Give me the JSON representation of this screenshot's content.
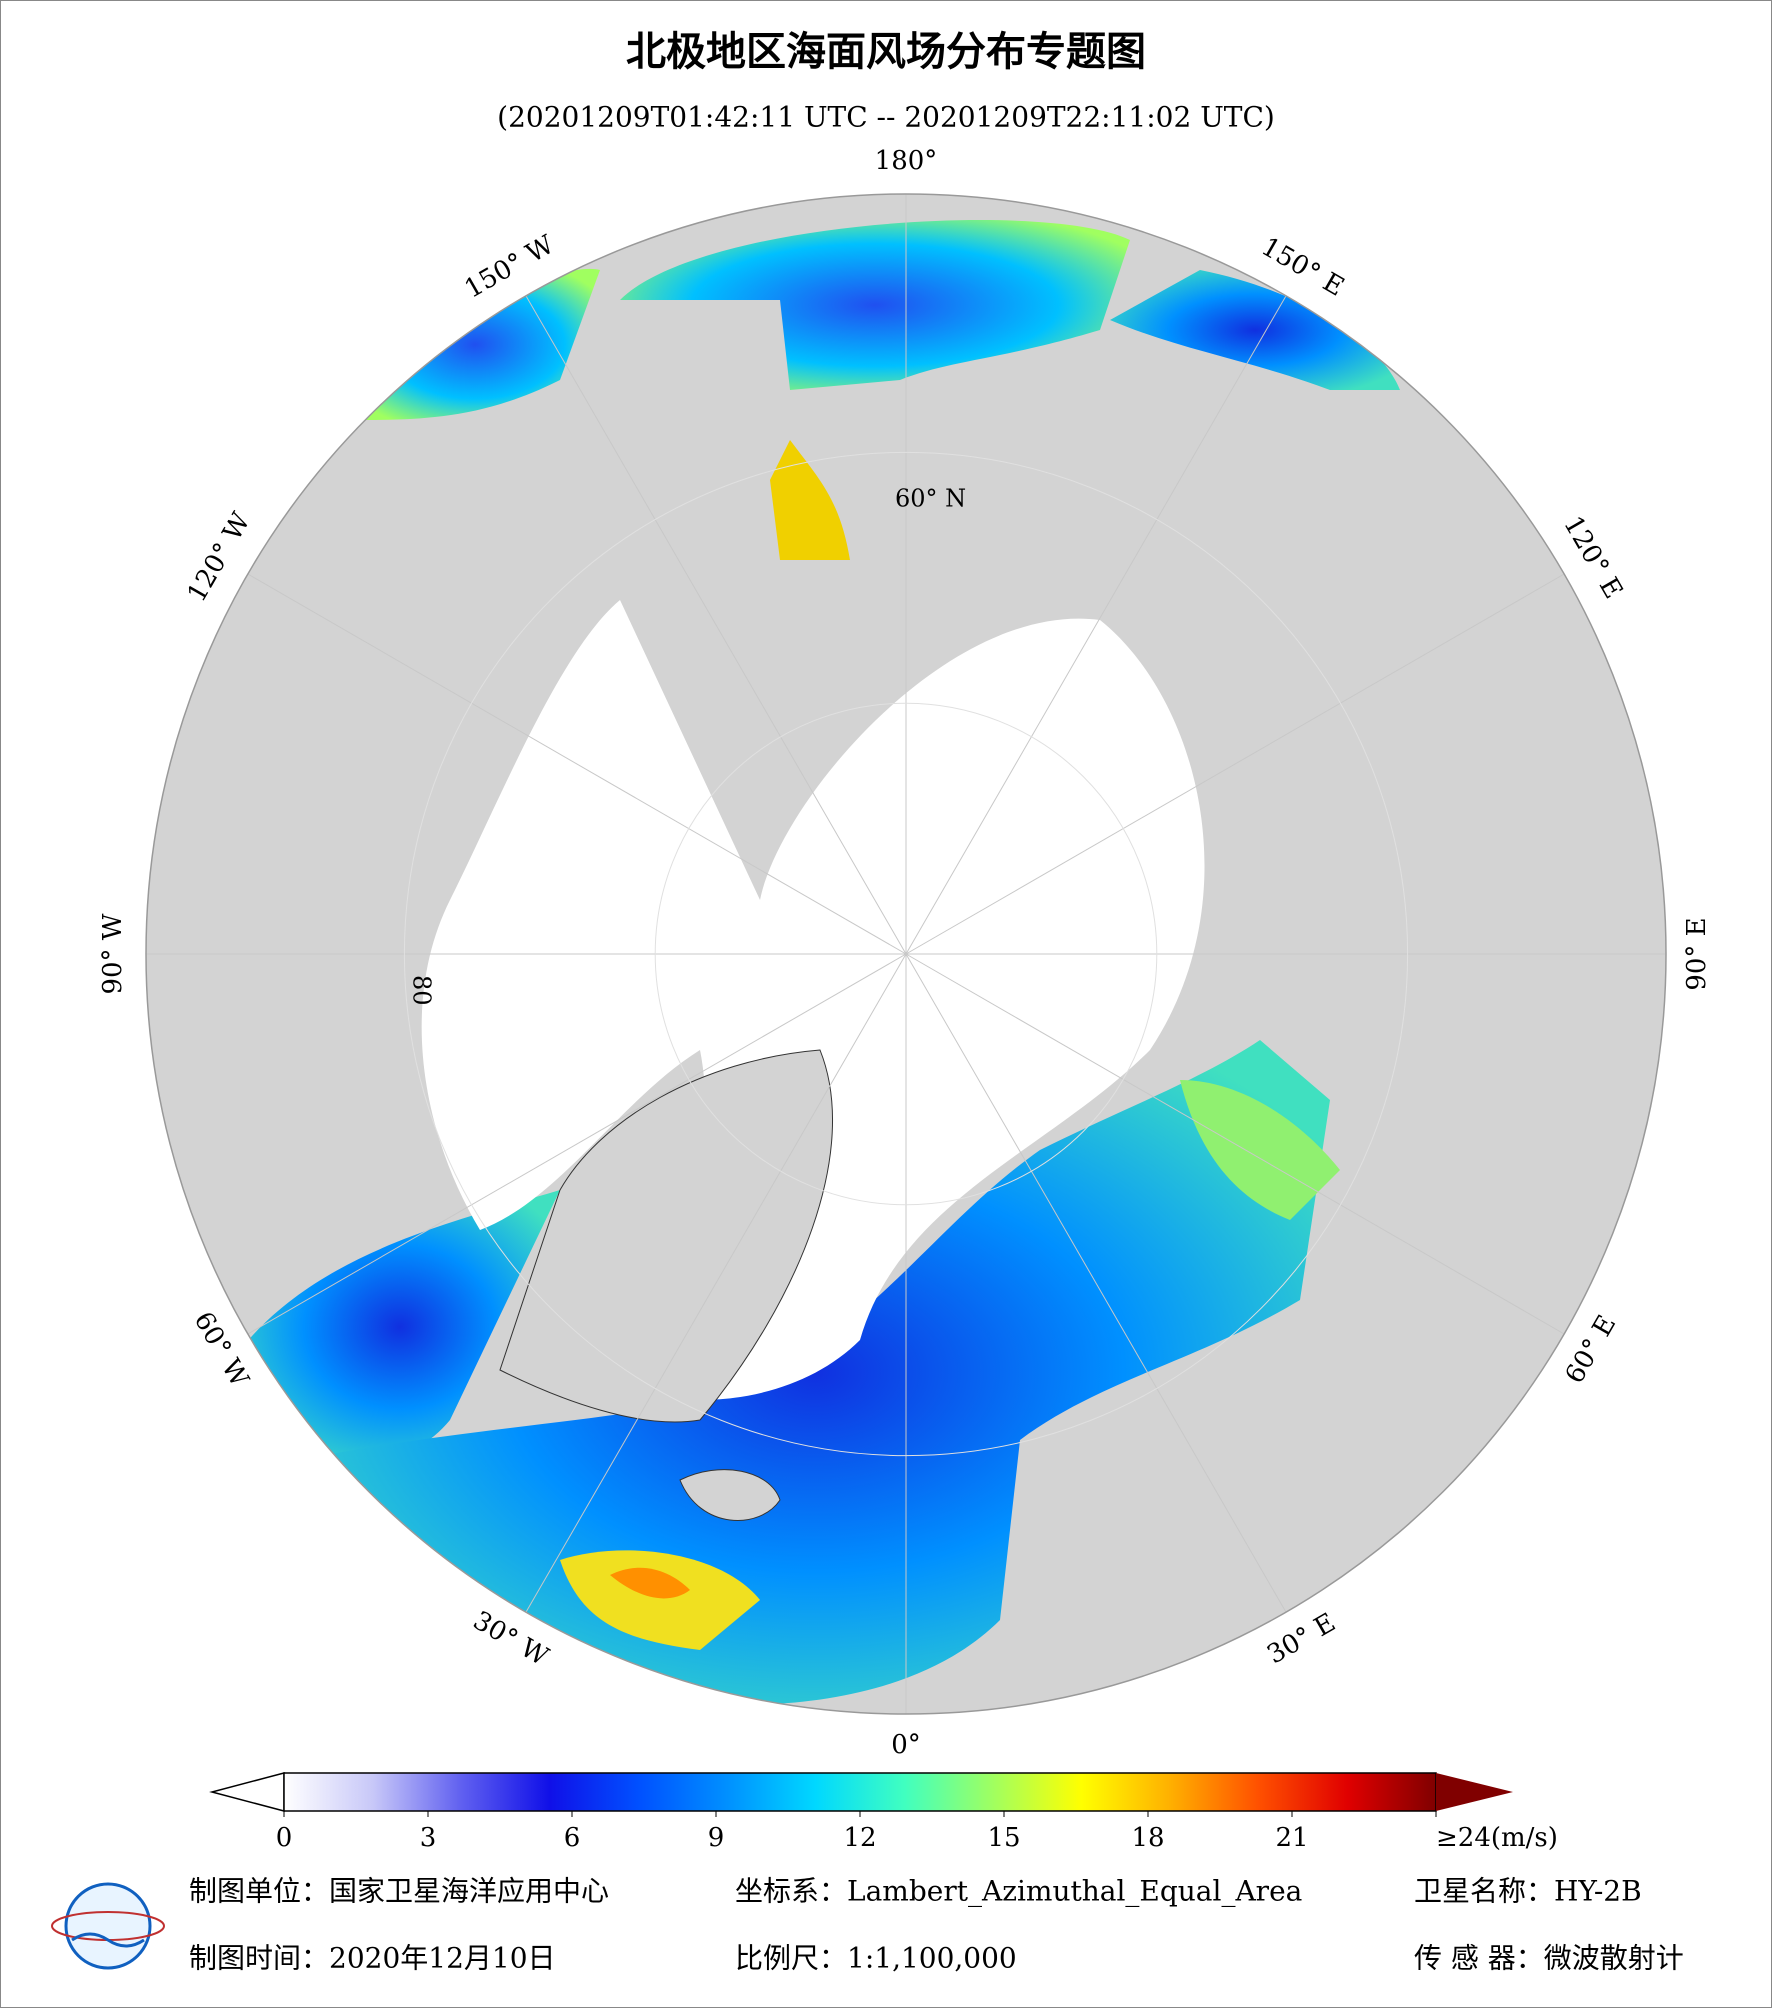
{
  "title": "北极地区海面风场分布专题图",
  "subtitle": "(20201209T01:42:11 UTC -- 20201209T22:11:02 UTC)",
  "map": {
    "lon_labels": [
      "0°",
      "30° E",
      "60° E",
      "90° E",
      "120° E",
      "150° E",
      "180°",
      "150° W",
      "120° W",
      "90° W",
      "60° W",
      "30° W"
    ],
    "lat_labels": [
      "60° N",
      "80"
    ]
  },
  "colorbar": {
    "range": [
      0,
      24
    ],
    "colors": [
      "#ffffff",
      "#c8c8f8",
      "#6060f0",
      "#1010e8",
      "#0050ff",
      "#0090ff",
      "#00d8ff",
      "#40ffc0",
      "#a0ff60",
      "#ffff00",
      "#ffb000",
      "#ff5000",
      "#e00000",
      "#800000"
    ],
    "ticks": [
      0,
      3,
      6,
      9,
      12,
      15,
      18,
      21,
      {
        "value": 24,
        "label": "≥24(m/s)"
      }
    ]
  },
  "footer": {
    "unit": "制图单位：国家卫星海洋应用中心",
    "projection": "坐标系：Lambert_Azimuthal_Equal_Area",
    "satellite": "卫星名称：HY-2B",
    "date": "制图时间：2020年12月10日",
    "scale": "比例尺：1:1,100,000",
    "sensor": "传 感 器：微波散射计"
  }
}
